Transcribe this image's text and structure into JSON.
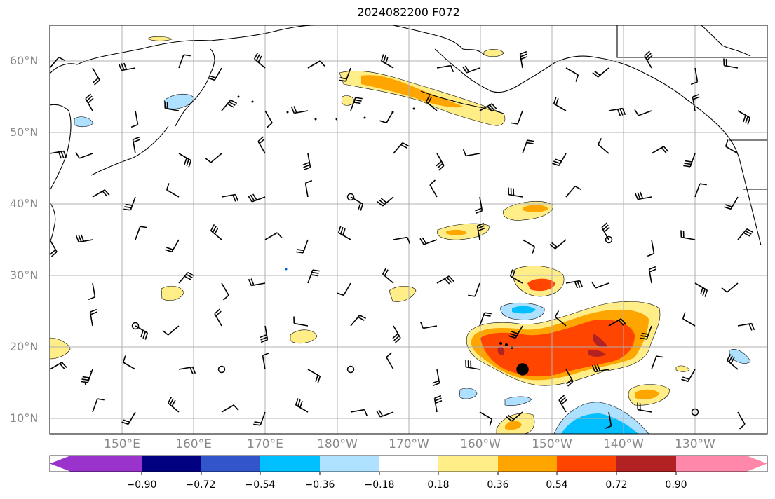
{
  "title": "2024082200 F072",
  "map": {
    "lat_labels": [
      "60°N",
      "50°N",
      "40°N",
      "30°N",
      "20°N",
      "10°N"
    ],
    "lon_labels": [
      "150°E",
      "160°E",
      "170°E",
      "180°W",
      "170°W",
      "160°W",
      "150°W",
      "140°W",
      "130°W"
    ],
    "features": [
      "coastlines",
      "lat-lon grid",
      "filled anomaly contours",
      "wind barbs",
      "station circle markers"
    ]
  },
  "colorbar": {
    "ticks": [
      "−0.90",
      "−0.72",
      "−0.54",
      "−0.36",
      "−0.18",
      "0.18",
      "0.36",
      "0.54",
      "0.72",
      "0.90"
    ],
    "colors": [
      "#9933cc",
      "#000080",
      "#3355cc",
      "#00bfff",
      "#aee0ff",
      "#ffffff",
      "#ffee88",
      "#ffa500",
      "#ff4500",
      "#b22222",
      "#ff88aa"
    ]
  }
}
